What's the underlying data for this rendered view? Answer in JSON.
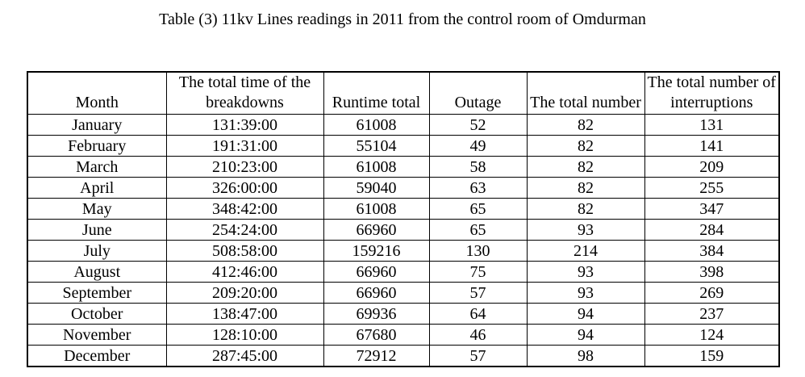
{
  "title": "Table (3) 11kv Lines readings in 2011 from the control room of Omdurman",
  "table": {
    "columns": [
      {
        "label": "Month"
      },
      {
        "label": "The total time of the breakdowns"
      },
      {
        "label": "Runtime total"
      },
      {
        "label": "Outage"
      },
      {
        "label": "The total number"
      },
      {
        "label": "The total number of interruptions"
      }
    ],
    "rows": [
      [
        "January",
        "131:39:00",
        "61008",
        "52",
        "82",
        "131"
      ],
      [
        "February",
        "191:31:00",
        "55104",
        "49",
        "82",
        "141"
      ],
      [
        "March",
        "210:23:00",
        "61008",
        "58",
        "82",
        "209"
      ],
      [
        "April",
        "326:00:00",
        "59040",
        "63",
        "82",
        "255"
      ],
      [
        "May",
        "348:42:00",
        "61008",
        "65",
        "82",
        "347"
      ],
      [
        "June",
        "254:24:00",
        "66960",
        "65",
        "93",
        "284"
      ],
      [
        "July",
        "508:58:00",
        "159216",
        "130",
        "214",
        "384"
      ],
      [
        "August",
        "412:46:00",
        "66960",
        "75",
        "93",
        "398"
      ],
      [
        "September",
        "209:20:00",
        "66960",
        "57",
        "93",
        "269"
      ],
      [
        "October",
        "138:47:00",
        "69936",
        "64",
        "94",
        "237"
      ],
      [
        "November",
        "128:10:00",
        "67680",
        "46",
        "94",
        "124"
      ],
      [
        "December",
        "287:45:00",
        "72912",
        "57",
        "98",
        "159"
      ]
    ]
  }
}
